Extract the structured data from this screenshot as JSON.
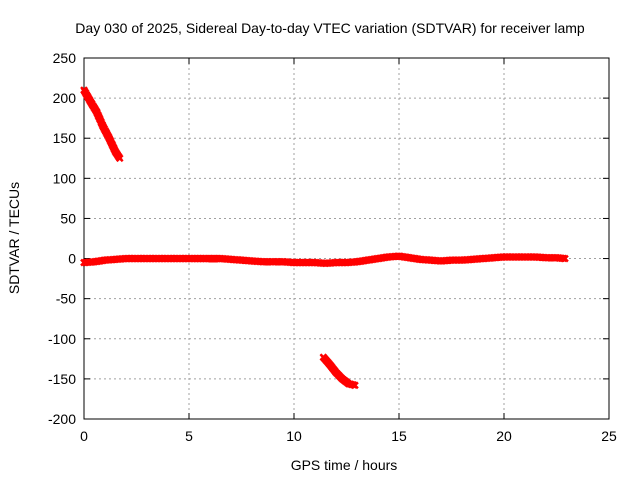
{
  "chart_data": {
    "type": "scatter",
    "title": "Day 030 of 2025, Sidereal Day-to-day VTEC variation (SDTVAR) for receiver lamp",
    "xlabel": "GPS time / hours",
    "ylabel": "SDTVAR / TECUs",
    "xlim": [
      0,
      25
    ],
    "ylim": [
      -200,
      250
    ],
    "xticks": [
      0,
      5,
      10,
      15,
      20,
      25
    ],
    "yticks": [
      -200,
      -150,
      -100,
      -50,
      0,
      50,
      100,
      150,
      200,
      250
    ],
    "grid": true,
    "legend": "none",
    "marker_color": "#ff0000",
    "series": [
      {
        "points": [
          [
            0.0,
            -5
          ],
          [
            0.5,
            -4
          ],
          [
            1.0,
            -2
          ],
          [
            1.5,
            -1
          ],
          [
            2.0,
            0
          ],
          [
            2.5,
            0
          ],
          [
            3.0,
            0
          ],
          [
            3.5,
            0
          ],
          [
            4.0,
            0
          ],
          [
            4.5,
            0
          ],
          [
            5.0,
            0
          ],
          [
            5.8,
            0
          ],
          [
            6.5,
            0
          ],
          [
            7.0,
            -1
          ],
          [
            7.5,
            -2
          ],
          [
            8.0,
            -3
          ],
          [
            8.5,
            -4
          ],
          [
            9.0,
            -4
          ],
          [
            9.5,
            -4
          ],
          [
            10.0,
            -5
          ],
          [
            10.5,
            -5
          ],
          [
            11.0,
            -5
          ],
          [
            11.5,
            -6
          ],
          [
            12.0,
            -5
          ],
          [
            12.5,
            -5
          ],
          [
            13.0,
            -4
          ],
          [
            13.5,
            -2
          ],
          [
            14.0,
            0
          ],
          [
            14.5,
            2
          ],
          [
            15.0,
            3
          ],
          [
            15.5,
            1
          ],
          [
            16.0,
            -1
          ],
          [
            16.5,
            -2
          ],
          [
            17.0,
            -3
          ],
          [
            17.5,
            -2
          ],
          [
            18.0,
            -2
          ],
          [
            18.5,
            -1
          ],
          [
            19.0,
            0
          ],
          [
            19.5,
            1
          ],
          [
            20.0,
            2
          ],
          [
            20.5,
            2
          ],
          [
            21.0,
            2
          ],
          [
            21.5,
            2
          ],
          [
            22.0,
            1
          ],
          [
            22.5,
            1
          ],
          [
            22.9,
            0
          ]
        ]
      },
      {
        "points": [
          [
            0.0,
            210
          ],
          [
            0.3,
            196
          ],
          [
            0.6,
            183
          ],
          [
            0.9,
            165
          ],
          [
            1.2,
            150
          ],
          [
            1.5,
            133
          ],
          [
            1.7,
            125
          ]
        ]
      },
      {
        "points": [
          [
            11.4,
            -123
          ],
          [
            11.7,
            -132
          ],
          [
            12.0,
            -142
          ],
          [
            12.3,
            -150
          ],
          [
            12.6,
            -156
          ],
          [
            12.9,
            -158
          ]
        ]
      }
    ]
  }
}
